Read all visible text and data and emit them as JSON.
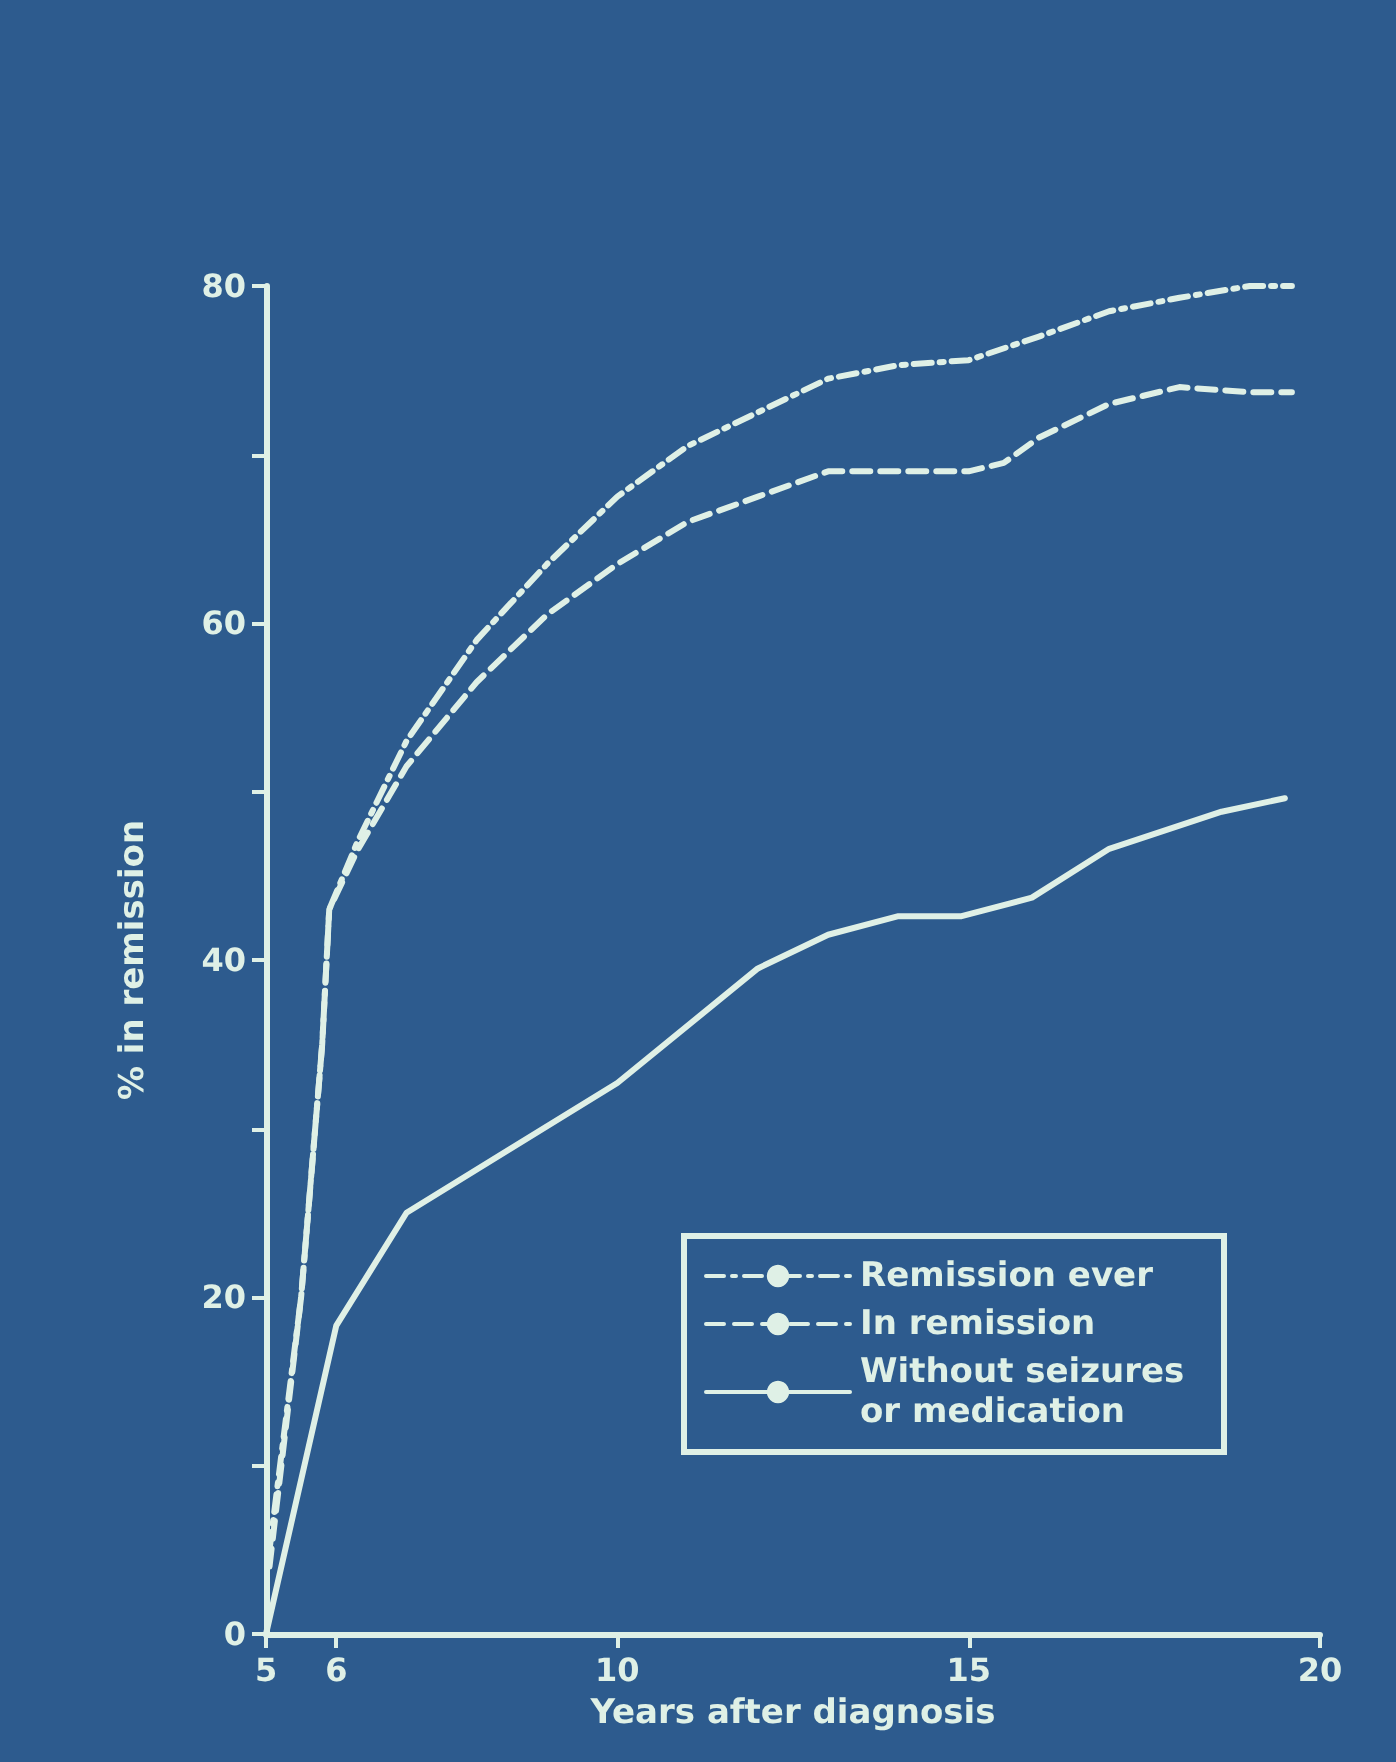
{
  "chart_data": {
    "type": "line",
    "xlabel": "Years after diagnosis",
    "ylabel": "% in remission",
    "xlim": [
      5,
      20
    ],
    "xticks": [
      5,
      6,
      10,
      15,
      20
    ],
    "ylim": [
      0,
      80
    ],
    "yticks": [
      0,
      {
        "value": 10,
        "label": null
      },
      20,
      {
        "value": 30,
        "label": null
      },
      40,
      {
        "value": 50,
        "label": null
      },
      60,
      {
        "value": 70,
        "label": null
      },
      80
    ],
    "grid": false,
    "legend": "bottom right",
    "marker": "none",
    "series": [
      {
        "name": "Remission ever",
        "color": "#dff0e6",
        "line_style": "dashdot",
        "x": [
          5.05,
          5.5,
          5.8,
          5.9,
          6.3,
          7,
          8,
          9,
          10,
          11,
          12,
          13,
          14,
          15,
          16,
          17,
          18,
          19,
          19.6
        ],
        "values": [
          5,
          20,
          35,
          43,
          47,
          53,
          59,
          63.5,
          67.5,
          70.5,
          72.5,
          74.5,
          75.3,
          75.6,
          77,
          78.5,
          79.3,
          80,
          80
        ]
      },
      {
        "name": "In remission",
        "color": "#dff0e6",
        "line_style": "dashed",
        "x": [
          5.05,
          5.5,
          5.8,
          5.9,
          6.3,
          7,
          8,
          9,
          10,
          11,
          12,
          13,
          14,
          15,
          15.5,
          16,
          17,
          18,
          19,
          19.6
        ],
        "values": [
          4,
          20,
          35,
          43,
          46.5,
          51.5,
          56.5,
          60.5,
          63.5,
          66,
          67.5,
          69,
          69,
          69,
          69.5,
          71,
          73,
          74,
          73.7,
          73.7
        ]
      },
      {
        "name": "Without seizures or medication",
        "color": "#dff0e6",
        "line_style": "solid",
        "x": [
          5,
          6,
          7,
          10,
          12,
          13,
          14,
          14.9,
          15.9,
          17,
          18.6,
          19.5
        ],
        "values": [
          0,
          18.3,
          25,
          32.7,
          39.5,
          41.5,
          42.6,
          42.6,
          43.7,
          46.6,
          48.8,
          49.6
        ]
      }
    ]
  }
}
